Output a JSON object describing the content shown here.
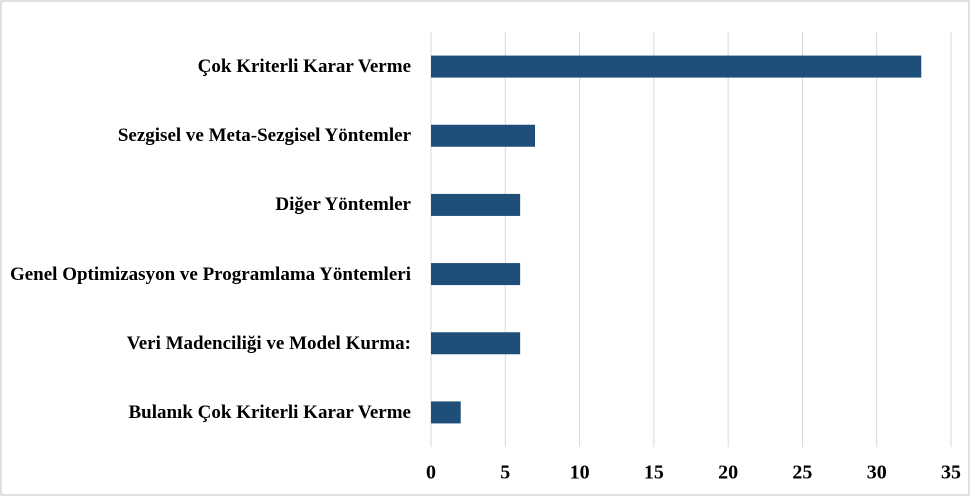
{
  "chart_data": {
    "type": "barh",
    "categories": [
      "Çok Kriterli Karar Verme",
      "Sezgisel ve Meta-Sezgisel Yöntemler",
      "Diğer Yöntemler",
      "Genel Optimizasyon ve Programlama Yöntemleri",
      "Veri Madenciliği ve Model Kurma:",
      "Bulanık Çok Kriterli Karar Verme"
    ],
    "values": [
      33,
      7,
      6,
      6,
      6,
      2
    ],
    "color": "#1f4e79",
    "xlim": [
      0,
      35
    ],
    "xticks": [
      0,
      5,
      10,
      15,
      20,
      25,
      30,
      35
    ],
    "grid": true
  }
}
